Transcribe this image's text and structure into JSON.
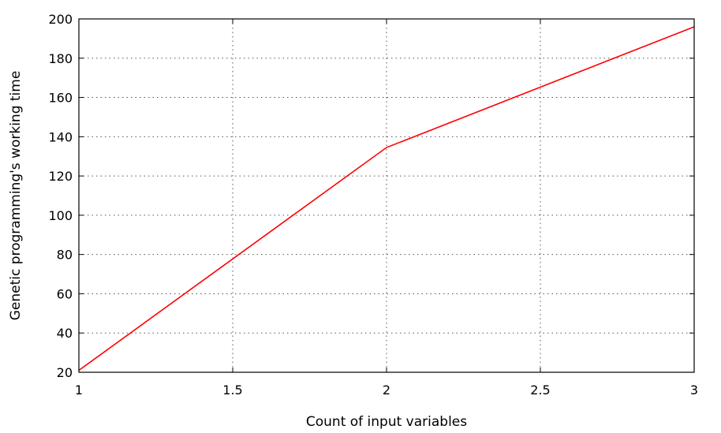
{
  "chart_data": {
    "type": "line",
    "title": "",
    "xlabel": "Count of input variables",
    "ylabel": "Genetic programming's working time",
    "xlim": [
      1,
      3
    ],
    "ylim": [
      20,
      200
    ],
    "xticks": [
      1,
      1.5,
      2,
      2.5,
      3
    ],
    "xtick_labels": [
      "1",
      "1.5",
      "2",
      "2.5",
      "3"
    ],
    "yticks": [
      20,
      40,
      60,
      80,
      100,
      120,
      140,
      160,
      180,
      200
    ],
    "ytick_labels": [
      "20",
      "40",
      "60",
      "80",
      "100",
      "120",
      "140",
      "160",
      "180",
      "200"
    ],
    "grid": true,
    "series": [
      {
        "color": "#ff0000",
        "x": [
          1,
          2,
          3
        ],
        "y": [
          21,
          134.5,
          196
        ]
      }
    ]
  }
}
